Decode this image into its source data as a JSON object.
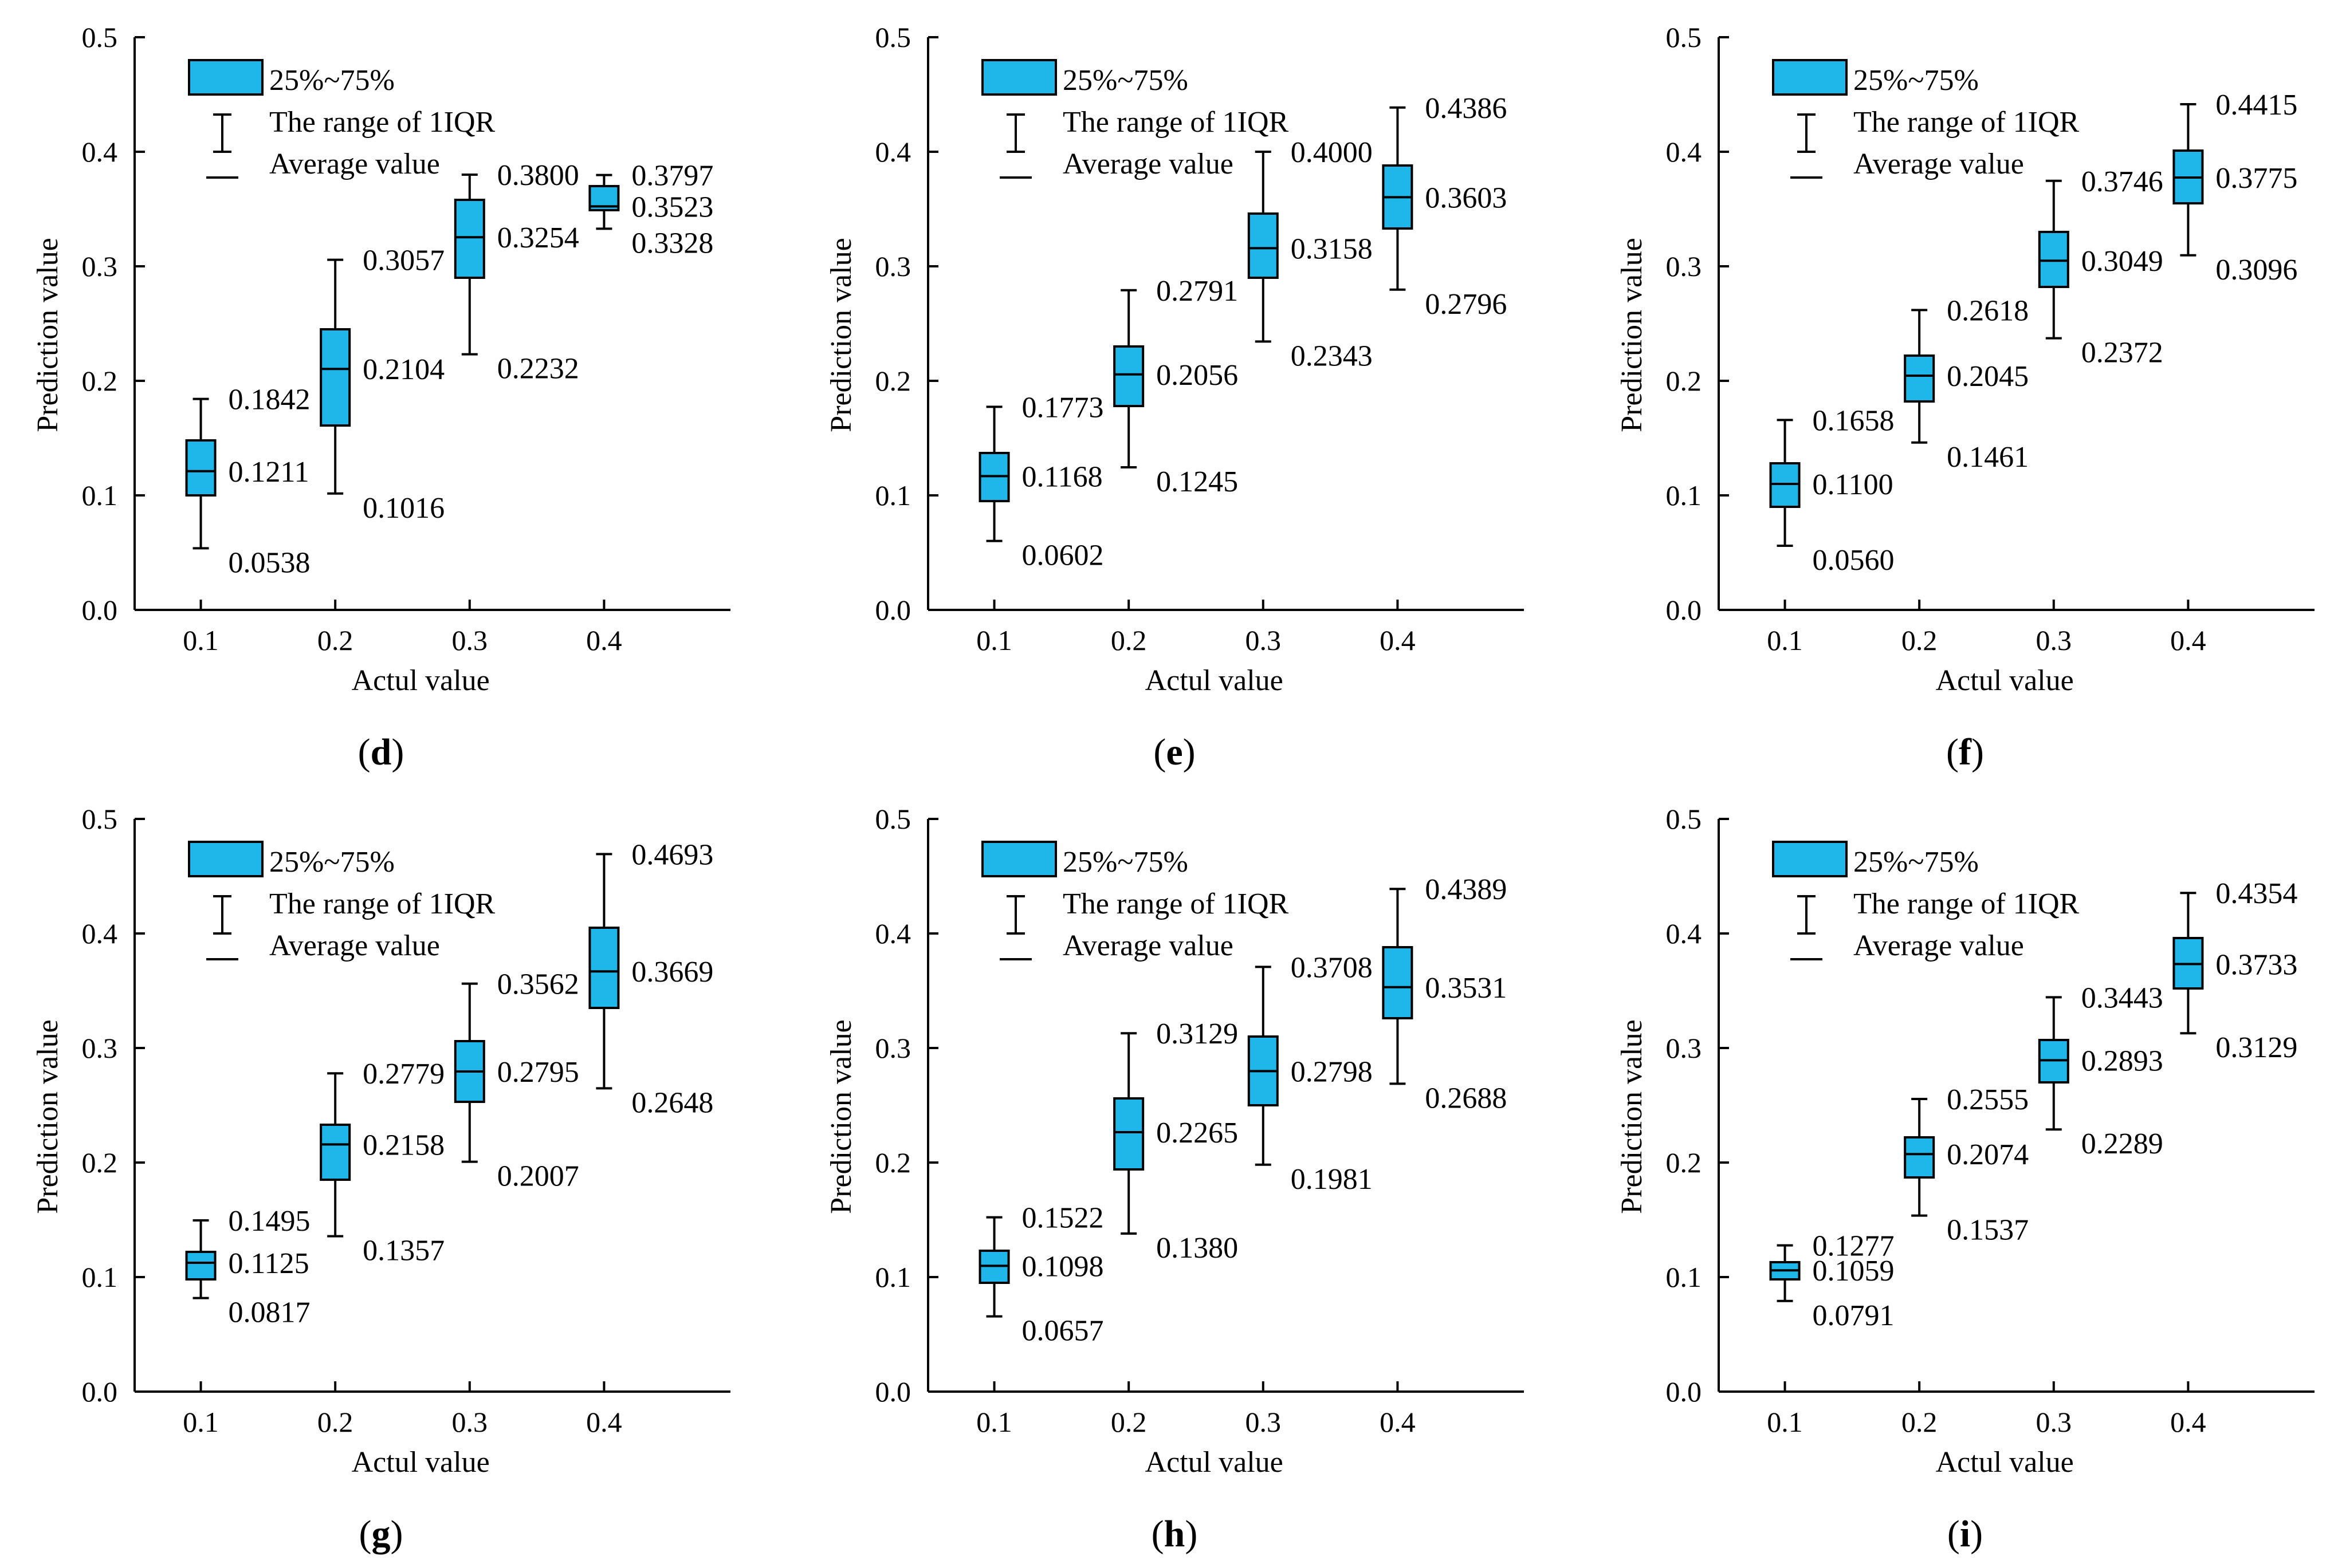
{
  "colors": {
    "box_fill": "#1fb6ea",
    "stroke": "#000000",
    "background": "#ffffff"
  },
  "legend": {
    "box": "25%~75%",
    "whisker": "The range of 1IQR",
    "mean": "Average value"
  },
  "axis": {
    "xlabel": "Actul value",
    "ylabel": "Prediction value",
    "xticks": [
      "0.1",
      "0.2",
      "0.3",
      "0.4"
    ],
    "yticks": [
      "0.0",
      "0.1",
      "0.2",
      "0.3",
      "0.4",
      "0.5"
    ]
  },
  "chart_data": [
    {
      "type": "box",
      "panel": "d",
      "ylim": [
        0,
        0.5
      ],
      "boxes": [
        {
          "x": 0.1,
          "low": 0.0538,
          "q1": 0.1,
          "median": 0.1211,
          "q3": 0.148,
          "high": 0.1842
        },
        {
          "x": 0.2,
          "low": 0.1016,
          "q1": 0.161,
          "median": 0.2104,
          "q3": 0.245,
          "high": 0.3057
        },
        {
          "x": 0.3,
          "low": 0.2232,
          "q1": 0.29,
          "median": 0.3254,
          "q3": 0.358,
          "high": 0.38
        },
        {
          "x": 0.4,
          "low": 0.3328,
          "q1": 0.349,
          "median": 0.3523,
          "q3": 0.37,
          "high": 0.3797
        }
      ],
      "annotations": [
        {
          "label": "0.1842",
          "x": 0.1,
          "y": 0.1842,
          "pos": "above"
        },
        {
          "label": "0.1211",
          "x": 0.1,
          "y": 0.1211,
          "pos": "mid"
        },
        {
          "label": "0.0538",
          "x": 0.1,
          "y": 0.0538,
          "pos": "below"
        },
        {
          "label": "0.3057",
          "x": 0.2,
          "y": 0.3057,
          "pos": "above"
        },
        {
          "label": "0.2104",
          "x": 0.2,
          "y": 0.2104,
          "pos": "mid"
        },
        {
          "label": "0.1016",
          "x": 0.2,
          "y": 0.1016,
          "pos": "below"
        },
        {
          "label": "0.3800",
          "x": 0.3,
          "y": 0.38,
          "pos": "above"
        },
        {
          "label": "0.3254",
          "x": 0.3,
          "y": 0.3254,
          "pos": "mid"
        },
        {
          "label": "0.2232",
          "x": 0.3,
          "y": 0.2232,
          "pos": "below"
        },
        {
          "label": "0.3797",
          "x": 0.4,
          "y": 0.3797,
          "pos": "above"
        },
        {
          "label": "0.3523",
          "x": 0.4,
          "y": 0.3523,
          "pos": "mid"
        },
        {
          "label": "0.3328",
          "x": 0.4,
          "y": 0.3328,
          "pos": "below"
        }
      ]
    },
    {
      "type": "box",
      "panel": "e",
      "ylim": [
        0,
        0.5
      ],
      "boxes": [
        {
          "x": 0.1,
          "low": 0.0602,
          "q1": 0.095,
          "median": 0.1168,
          "q3": 0.137,
          "high": 0.1773
        },
        {
          "x": 0.2,
          "low": 0.1245,
          "q1": 0.178,
          "median": 0.2056,
          "q3": 0.23,
          "high": 0.2791
        },
        {
          "x": 0.3,
          "low": 0.2343,
          "q1": 0.29,
          "median": 0.3158,
          "q3": 0.346,
          "high": 0.4
        },
        {
          "x": 0.4,
          "low": 0.2796,
          "q1": 0.333,
          "median": 0.3603,
          "q3": 0.388,
          "high": 0.4386
        }
      ],
      "annotations": [
        {
          "label": "0.1773",
          "x": 0.1,
          "y": 0.1773,
          "pos": "above"
        },
        {
          "label": "0.1168",
          "x": 0.1,
          "y": 0.1168,
          "pos": "mid"
        },
        {
          "label": "0.0602",
          "x": 0.1,
          "y": 0.0602,
          "pos": "below"
        },
        {
          "label": "0.2791",
          "x": 0.2,
          "y": 0.2791,
          "pos": "above"
        },
        {
          "label": "0.2056",
          "x": 0.2,
          "y": 0.2056,
          "pos": "mid"
        },
        {
          "label": "0.1245",
          "x": 0.2,
          "y": 0.1245,
          "pos": "below"
        },
        {
          "label": "0.4000",
          "x": 0.3,
          "y": 0.4,
          "pos": "above"
        },
        {
          "label": "0.3158",
          "x": 0.3,
          "y": 0.3158,
          "pos": "mid"
        },
        {
          "label": "0.2343",
          "x": 0.3,
          "y": 0.2343,
          "pos": "below"
        },
        {
          "label": "0.4386",
          "x": 0.4,
          "y": 0.4386,
          "pos": "above"
        },
        {
          "label": "0.3603",
          "x": 0.4,
          "y": 0.3603,
          "pos": "mid"
        },
        {
          "label": "0.2796",
          "x": 0.4,
          "y": 0.2796,
          "pos": "below"
        }
      ]
    },
    {
      "type": "box",
      "panel": "f",
      "ylim": [
        0,
        0.5
      ],
      "boxes": [
        {
          "x": 0.1,
          "low": 0.056,
          "q1": 0.09,
          "median": 0.11,
          "q3": 0.128,
          "high": 0.1658
        },
        {
          "x": 0.2,
          "low": 0.1461,
          "q1": 0.182,
          "median": 0.2045,
          "q3": 0.222,
          "high": 0.2618
        },
        {
          "x": 0.3,
          "low": 0.2372,
          "q1": 0.282,
          "median": 0.3049,
          "q3": 0.33,
          "high": 0.3746
        },
        {
          "x": 0.4,
          "low": 0.3096,
          "q1": 0.355,
          "median": 0.3775,
          "q3": 0.401,
          "high": 0.4415
        }
      ],
      "annotations": [
        {
          "label": "0.1658",
          "x": 0.1,
          "y": 0.1658,
          "pos": "above"
        },
        {
          "label": "0.1100",
          "x": 0.1,
          "y": 0.11,
          "pos": "mid"
        },
        {
          "label": "0.0560",
          "x": 0.1,
          "y": 0.056,
          "pos": "below"
        },
        {
          "label": "0.2618",
          "x": 0.2,
          "y": 0.2618,
          "pos": "above"
        },
        {
          "label": "0.2045",
          "x": 0.2,
          "y": 0.2045,
          "pos": "mid"
        },
        {
          "label": "0.1461",
          "x": 0.2,
          "y": 0.1461,
          "pos": "below"
        },
        {
          "label": "0.3746",
          "x": 0.3,
          "y": 0.3746,
          "pos": "above"
        },
        {
          "label": "0.3049",
          "x": 0.3,
          "y": 0.3049,
          "pos": "mid"
        },
        {
          "label": "0.2372",
          "x": 0.3,
          "y": 0.2372,
          "pos": "below"
        },
        {
          "label": "0.4415",
          "x": 0.4,
          "y": 0.4415,
          "pos": "above"
        },
        {
          "label": "0.3775",
          "x": 0.4,
          "y": 0.3775,
          "pos": "mid"
        },
        {
          "label": "0.3096",
          "x": 0.4,
          "y": 0.3096,
          "pos": "below"
        }
      ]
    },
    {
      "type": "box",
      "panel": "g",
      "ylim": [
        0,
        0.5
      ],
      "boxes": [
        {
          "x": 0.1,
          "low": 0.0817,
          "q1": 0.098,
          "median": 0.1125,
          "q3": 0.122,
          "high": 0.1495
        },
        {
          "x": 0.2,
          "low": 0.1357,
          "q1": 0.185,
          "median": 0.2158,
          "q3": 0.233,
          "high": 0.2779
        },
        {
          "x": 0.3,
          "low": 0.2007,
          "q1": 0.253,
          "median": 0.2795,
          "q3": 0.306,
          "high": 0.3562
        },
        {
          "x": 0.4,
          "low": 0.2648,
          "q1": 0.335,
          "median": 0.3669,
          "q3": 0.405,
          "high": 0.4693
        }
      ],
      "annotations": [
        {
          "label": "0.1495",
          "x": 0.1,
          "y": 0.1495,
          "pos": "above"
        },
        {
          "label": "0.1125",
          "x": 0.1,
          "y": 0.1125,
          "pos": "mid"
        },
        {
          "label": "0.0817",
          "x": 0.1,
          "y": 0.0817,
          "pos": "below"
        },
        {
          "label": "0.2779",
          "x": 0.2,
          "y": 0.2779,
          "pos": "above"
        },
        {
          "label": "0.2158",
          "x": 0.2,
          "y": 0.2158,
          "pos": "mid"
        },
        {
          "label": "0.1357",
          "x": 0.2,
          "y": 0.1357,
          "pos": "below"
        },
        {
          "label": "0.3562",
          "x": 0.3,
          "y": 0.3562,
          "pos": "above"
        },
        {
          "label": "0.2795",
          "x": 0.3,
          "y": 0.2795,
          "pos": "mid"
        },
        {
          "label": "0.2007",
          "x": 0.3,
          "y": 0.2007,
          "pos": "below"
        },
        {
          "label": "0.4693",
          "x": 0.4,
          "y": 0.4693,
          "pos": "above"
        },
        {
          "label": "0.3669",
          "x": 0.4,
          "y": 0.3669,
          "pos": "mid"
        },
        {
          "label": "0.2648",
          "x": 0.4,
          "y": 0.2648,
          "pos": "below"
        }
      ]
    },
    {
      "type": "box",
      "panel": "h",
      "ylim": [
        0,
        0.5
      ],
      "boxes": [
        {
          "x": 0.1,
          "low": 0.0657,
          "q1": 0.095,
          "median": 0.1098,
          "q3": 0.123,
          "high": 0.1522
        },
        {
          "x": 0.2,
          "low": 0.138,
          "q1": 0.194,
          "median": 0.2265,
          "q3": 0.256,
          "high": 0.3129
        },
        {
          "x": 0.3,
          "low": 0.1981,
          "q1": 0.25,
          "median": 0.2798,
          "q3": 0.31,
          "high": 0.3708
        },
        {
          "x": 0.4,
          "low": 0.2688,
          "q1": 0.326,
          "median": 0.3531,
          "q3": 0.388,
          "high": 0.4389
        }
      ],
      "annotations": [
        {
          "label": "0.1522",
          "x": 0.1,
          "y": 0.1522,
          "pos": "above"
        },
        {
          "label": "0.1098",
          "x": 0.1,
          "y": 0.1098,
          "pos": "mid"
        },
        {
          "label": "0.0657",
          "x": 0.1,
          "y": 0.0657,
          "pos": "below"
        },
        {
          "label": "0.3129",
          "x": 0.2,
          "y": 0.3129,
          "pos": "above"
        },
        {
          "label": "0.2265",
          "x": 0.2,
          "y": 0.2265,
          "pos": "mid"
        },
        {
          "label": "0.1380",
          "x": 0.2,
          "y": 0.138,
          "pos": "below"
        },
        {
          "label": "0.3708",
          "x": 0.3,
          "y": 0.3708,
          "pos": "above"
        },
        {
          "label": "0.2798",
          "x": 0.3,
          "y": 0.2798,
          "pos": "mid"
        },
        {
          "label": "0.1981",
          "x": 0.3,
          "y": 0.1981,
          "pos": "below"
        },
        {
          "label": "0.4389",
          "x": 0.4,
          "y": 0.4389,
          "pos": "above"
        },
        {
          "label": "0.3531",
          "x": 0.4,
          "y": 0.3531,
          "pos": "mid"
        },
        {
          "label": "0.2688",
          "x": 0.4,
          "y": 0.2688,
          "pos": "below"
        }
      ]
    },
    {
      "type": "box",
      "panel": "i",
      "ylim": [
        0,
        0.5
      ],
      "boxes": [
        {
          "x": 0.1,
          "low": 0.0791,
          "q1": 0.098,
          "median": 0.1059,
          "q3": 0.113,
          "high": 0.1277
        },
        {
          "x": 0.2,
          "low": 0.1537,
          "q1": 0.187,
          "median": 0.2074,
          "q3": 0.222,
          "high": 0.2555
        },
        {
          "x": 0.3,
          "low": 0.2289,
          "q1": 0.27,
          "median": 0.2893,
          "q3": 0.307,
          "high": 0.3443
        },
        {
          "x": 0.4,
          "low": 0.3129,
          "q1": 0.352,
          "median": 0.3733,
          "q3": 0.396,
          "high": 0.4354
        }
      ],
      "annotations": [
        {
          "label": "0.1277",
          "x": 0.1,
          "y": 0.1277,
          "pos": "above"
        },
        {
          "label": "0.1059",
          "x": 0.1,
          "y": 0.1059,
          "pos": "mid"
        },
        {
          "label": "0.0791",
          "x": 0.1,
          "y": 0.0791,
          "pos": "below"
        },
        {
          "label": "0.2555",
          "x": 0.2,
          "y": 0.2555,
          "pos": "above"
        },
        {
          "label": "0.2074",
          "x": 0.2,
          "y": 0.2074,
          "pos": "mid"
        },
        {
          "label": "0.1537",
          "x": 0.2,
          "y": 0.1537,
          "pos": "below"
        },
        {
          "label": "0.3443",
          "x": 0.3,
          "y": 0.3443,
          "pos": "above"
        },
        {
          "label": "0.2893",
          "x": 0.3,
          "y": 0.2893,
          "pos": "mid"
        },
        {
          "label": "0.2289",
          "x": 0.3,
          "y": 0.2289,
          "pos": "below"
        },
        {
          "label": "0.4354",
          "x": 0.4,
          "y": 0.4354,
          "pos": "above"
        },
        {
          "label": "0.3733",
          "x": 0.4,
          "y": 0.3733,
          "pos": "mid"
        },
        {
          "label": "0.3129",
          "x": 0.4,
          "y": 0.3129,
          "pos": "below"
        }
      ]
    }
  ]
}
